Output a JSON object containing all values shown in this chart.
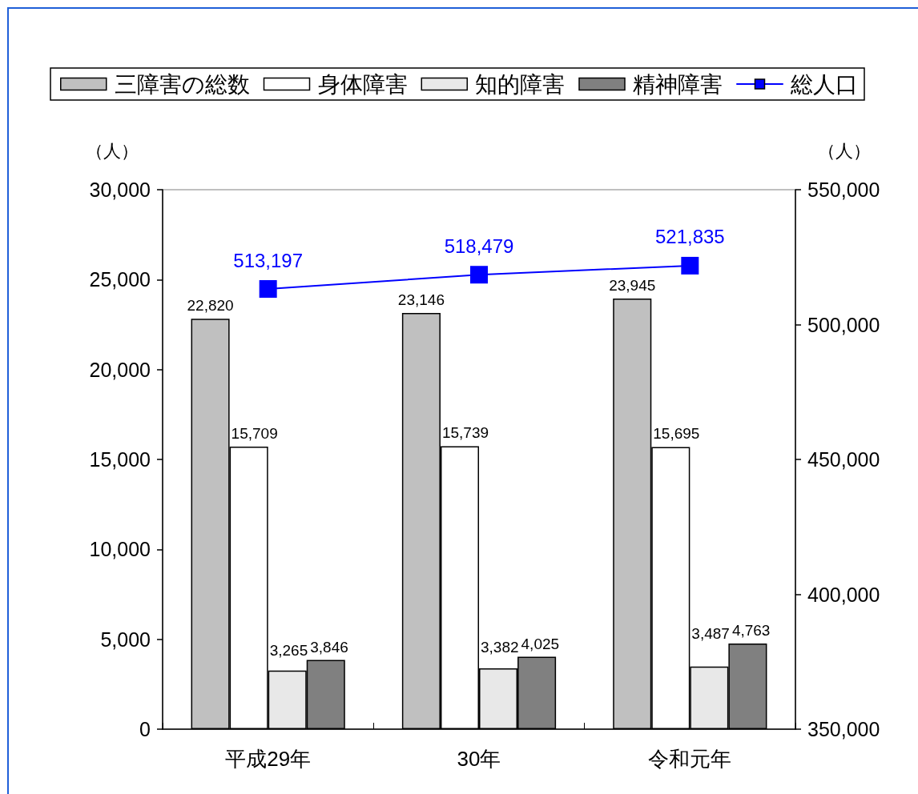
{
  "chart_data": {
    "type": "bar",
    "categories": [
      "平成29年",
      "30年",
      "令和元年"
    ],
    "series": [
      {
        "name": "三障害の総数",
        "color": "#c0c0c0",
        "values": [
          22820,
          23146,
          23945
        ],
        "value_labels": [
          "22,820",
          "23,146",
          "23,945"
        ]
      },
      {
        "name": "身体障害",
        "color": "#ffffff",
        "values": [
          15709,
          15739,
          15695
        ],
        "value_labels": [
          "15,709",
          "15,739",
          "15,695"
        ]
      },
      {
        "name": "知的障害",
        "color": "#e8e8e8",
        "values": [
          3265,
          3382,
          3487
        ],
        "value_labels": [
          "3,265",
          "3,382",
          "3,487"
        ]
      },
      {
        "name": "精神障害",
        "color": "#808080",
        "values": [
          3846,
          4025,
          4763
        ],
        "value_labels": [
          "3,846",
          "4,025",
          "4,763"
        ]
      },
      {
        "name": "総人口",
        "type": "line",
        "axis": "y2",
        "color": "#0000ff",
        "values": [
          513197,
          518479,
          521835
        ],
        "value_labels": [
          "513,197",
          "518,479",
          "521,835"
        ]
      }
    ],
    "ylabel": "（人）",
    "y2label": "（人）",
    "ylim": [
      0,
      30000
    ],
    "yticks": [
      0,
      {
        "value": 5000,
        "label": "5,000"
      },
      {
        "value": 10000,
        "label": "10,000"
      },
      {
        "value": 15000,
        "label": "15,000"
      },
      {
        "value": 20000,
        "label": "20,000"
      },
      {
        "value": 25000,
        "label": "25,000"
      },
      {
        "value": 30000,
        "label": "30,000"
      }
    ],
    "y2lim": [
      350000,
      550000
    ],
    "y2ticks": [
      {
        "value": 350000,
        "label": "350,000"
      },
      {
        "value": 400000,
        "label": "400,000"
      },
      {
        "value": 450000,
        "label": "450,000"
      },
      {
        "value": 500000,
        "label": "500,000"
      },
      {
        "value": 550000,
        "label": "550,000"
      }
    ],
    "legend": "top",
    "grid": false,
    "marker": "square",
    "line_style": "solid"
  }
}
